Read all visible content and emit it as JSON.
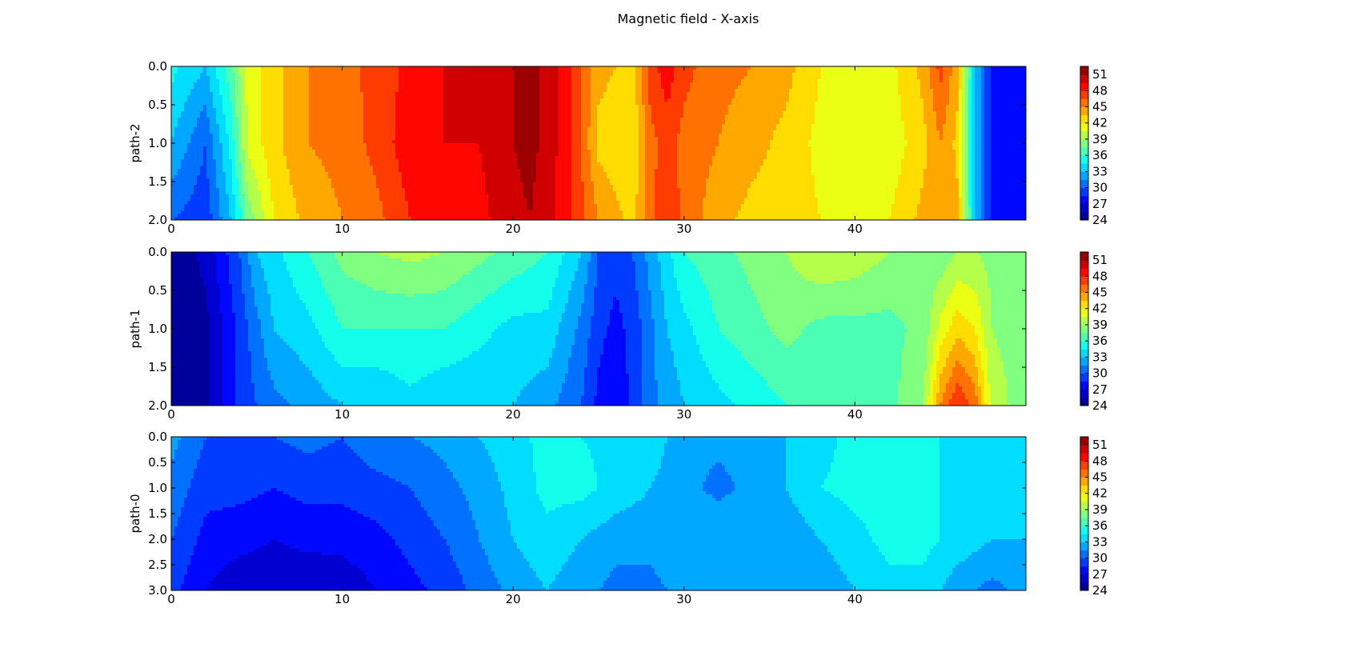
{
  "chart_data": {
    "type": "heatmap",
    "title": "Magnetic field - X-axis",
    "colormap": "jet",
    "colorbar": {
      "vmin": 24,
      "vmax": 52.5,
      "levels_step": 1.5,
      "ticks": [
        "51",
        "48",
        "45",
        "42",
        "39",
        "36",
        "33",
        "30",
        "27",
        "24"
      ]
    },
    "x_ticks": [
      "0",
      "10",
      "20",
      "30",
      "40"
    ],
    "xlim": [
      0,
      50
    ],
    "panels": [
      {
        "ylabel": "path-2",
        "ylim": [
          0,
          2
        ],
        "y_ticks": [
          "0.0",
          "0.5",
          "1.0",
          "1.5",
          "2.0"
        ],
        "x": [
          0,
          2,
          3.5,
          4.5,
          6,
          8,
          10,
          12,
          14,
          16,
          18,
          20,
          21,
          22,
          23.5,
          25,
          27,
          28,
          29,
          30,
          32,
          34,
          36,
          38,
          40,
          42,
          44,
          45,
          46,
          47,
          48,
          50
        ],
        "y": [
          0,
          1,
          2
        ],
        "z": [
          [
            35,
            33,
            37,
            41,
            43,
            45,
            46,
            47,
            48.5,
            49.5,
            49.5,
            51,
            51.5,
            50.5,
            48,
            44,
            43,
            47,
            49,
            47,
            45.5,
            45,
            44,
            42,
            41,
            41.5,
            44,
            47,
            44,
            33,
            28,
            27
          ],
          [
            33,
            30,
            35,
            41,
            43,
            45,
            45.5,
            47,
            49,
            49.5,
            49.5,
            51,
            51.5,
            50.5,
            48,
            43,
            42,
            46,
            47,
            46,
            45,
            44,
            43,
            41.5,
            41,
            41,
            43,
            45,
            43,
            33,
            28,
            27
          ],
          [
            30,
            29,
            33,
            38,
            42,
            44,
            45,
            46,
            48,
            49,
            49,
            50.5,
            51,
            50,
            48,
            45,
            43,
            46,
            48,
            46,
            44,
            43,
            43,
            42,
            41,
            42,
            44,
            45,
            44,
            33,
            28,
            27
          ]
        ]
      },
      {
        "ylabel": "path-1",
        "ylim": [
          0,
          2
        ],
        "y_ticks": [
          "0.0",
          "0.5",
          "1.0",
          "1.5",
          "2.0"
        ],
        "x": [
          0,
          1,
          2,
          3,
          4,
          5,
          6,
          8,
          10,
          12,
          14,
          16,
          18,
          20,
          22,
          24,
          25,
          26,
          27,
          28,
          29,
          30,
          32,
          34,
          36,
          38,
          40,
          42,
          44,
          45,
          46,
          47,
          48,
          50
        ],
        "y": [
          0,
          1,
          2
        ],
        "z": [
          [
            24,
            25,
            26,
            28,
            30,
            33,
            34,
            36,
            38,
            39,
            39.5,
            39,
            38,
            37,
            36,
            33,
            30,
            29,
            30,
            32,
            34,
            36,
            37,
            38,
            39,
            40.5,
            40,
            39,
            38,
            38,
            39,
            39,
            38.5,
            38
          ],
          [
            24,
            24.5,
            25,
            27,
            29,
            31,
            33,
            34,
            36,
            36,
            36,
            36,
            35,
            34,
            34,
            31,
            29,
            28,
            29,
            31,
            33,
            34,
            36,
            37,
            38,
            37,
            37,
            37,
            38,
            41,
            43,
            42,
            39,
            38
          ],
          [
            24,
            24.5,
            25,
            27,
            29,
            30,
            31,
            32,
            33,
            33,
            34,
            33,
            33,
            33,
            32,
            30,
            28,
            27,
            29,
            31,
            32,
            33,
            34,
            35,
            36,
            36,
            36,
            37,
            39,
            45,
            48,
            46,
            40,
            38
          ]
        ]
      },
      {
        "ylabel": "path-0",
        "ylim": [
          0,
          3
        ],
        "y_ticks": [
          "0.0",
          "0.5",
          "1.0",
          "1.5",
          "2.0",
          "2.5",
          "3.0"
        ],
        "x": [
          0,
          2,
          4,
          6,
          8,
          10,
          12,
          14,
          16,
          18,
          20,
          22,
          24,
          26,
          28,
          30,
          32,
          34,
          36,
          38,
          40,
          42,
          44,
          46,
          48,
          50
        ],
        "y": [
          0,
          1,
          2,
          3
        ],
        "z": [
          [
            32,
            30,
            30,
            30,
            30.5,
            30,
            31,
            31.5,
            32,
            33,
            34,
            35,
            34.5,
            34,
            34,
            32,
            32,
            32,
            33,
            34,
            35,
            35,
            35,
            34,
            34,
            34
          ],
          [
            31,
            29,
            29,
            28.5,
            29,
            29,
            29.5,
            30,
            31,
            32,
            33.5,
            35,
            35,
            34,
            33,
            32,
            31,
            32,
            33,
            34.5,
            35,
            35,
            35,
            34,
            34,
            33.5
          ],
          [
            30,
            28,
            27.5,
            27,
            27.5,
            27.5,
            28,
            29,
            30,
            31.5,
            33,
            34,
            33,
            32,
            32,
            33,
            33,
            33,
            32,
            33,
            34,
            35,
            35,
            34,
            33,
            33
          ],
          [
            29,
            27,
            26,
            26,
            25.5,
            26,
            27,
            28,
            29,
            30.5,
            32,
            33,
            32,
            31,
            31,
            32,
            33,
            32,
            32,
            32,
            33,
            34,
            34,
            32,
            31,
            32
          ]
        ]
      }
    ]
  }
}
